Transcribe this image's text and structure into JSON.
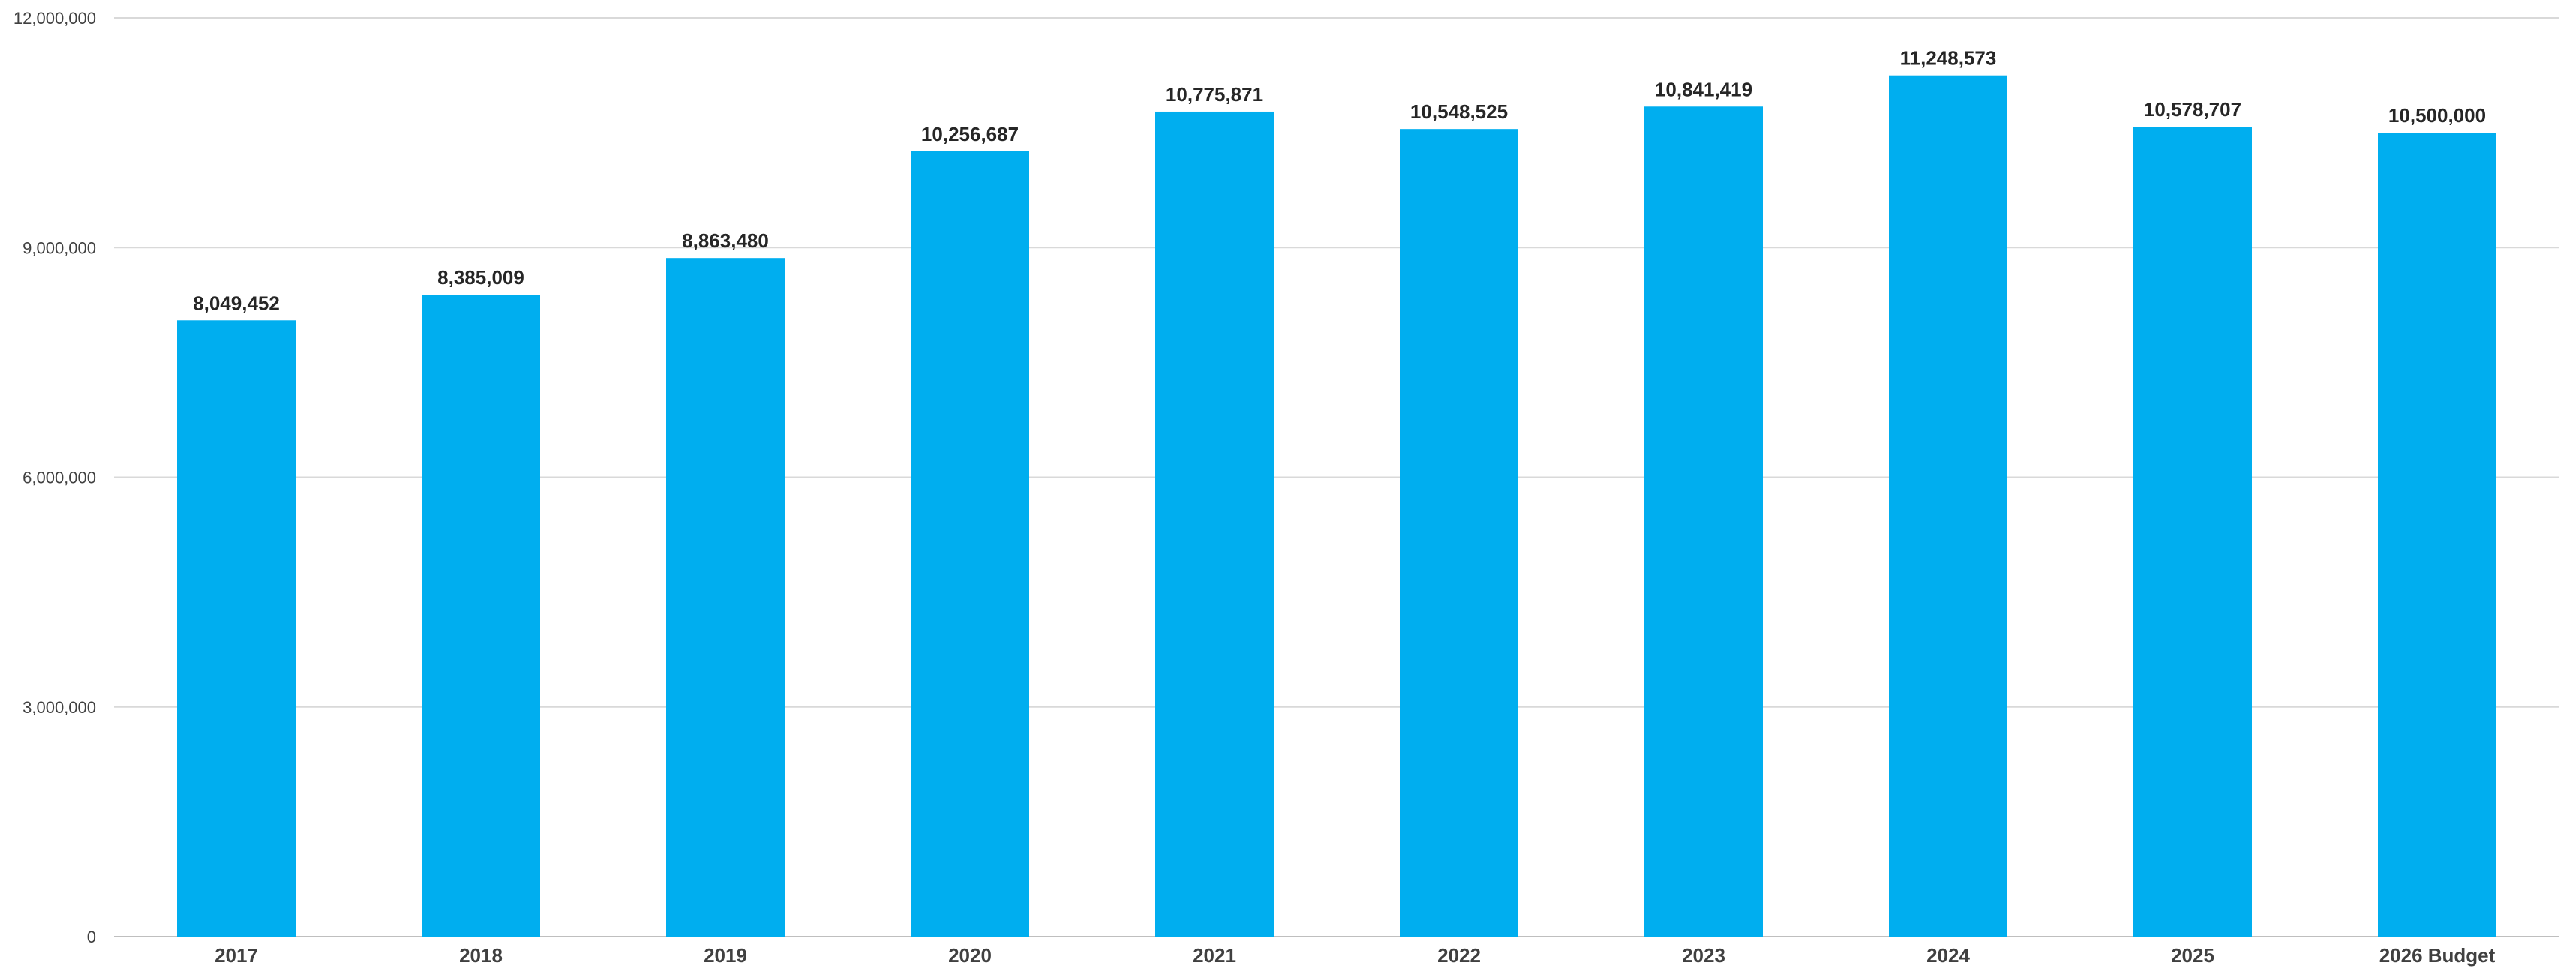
{
  "chart_data": {
    "type": "bar",
    "categories": [
      "2017",
      "2018",
      "2019",
      "2020",
      "2021",
      "2022",
      "2023",
      "2024",
      "2025",
      "2026 Budget"
    ],
    "values": [
      8049452,
      8385009,
      8863480,
      10256687,
      10775871,
      10548525,
      10841419,
      11248573,
      10578707,
      10500000
    ],
    "value_labels": [
      "8,049,452",
      "8,385,009",
      "8,863,480",
      "10,256,687",
      "10,775,871",
      "10,548,525",
      "10,841,419",
      "11,248,573",
      "10,578,707",
      "10,500,000"
    ],
    "yticks": [
      0,
      3000000,
      6000000,
      9000000,
      12000000
    ],
    "ytick_labels": [
      "0",
      "3,000,000",
      "6,000,000",
      "9,000,000",
      "12,000,000"
    ],
    "ylim": [
      0,
      12000000
    ],
    "title": "",
    "xlabel": "",
    "ylabel": "",
    "grid": true,
    "legend": "none",
    "bar_color": "#00AEEF"
  }
}
